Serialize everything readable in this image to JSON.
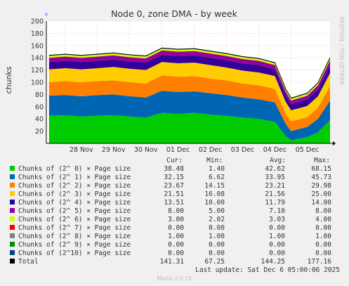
{
  "title": "Node 0, zone DMA - by week",
  "watermark": "RRDTOOL / TOBI OETIKER",
  "footer": "Munin 2.0.73",
  "last_update": "Last update: Sat Dec  6 05:00:06 2025",
  "legend_headers": [
    "Cur:",
    "Min:",
    "Avg:",
    "Max:"
  ],
  "legend_rows": [
    {
      "label": "Chunks of (2^ 0) × Page size",
      "color": "#00cc00",
      "cur": "38.48",
      "min": "1.40",
      "avg": "42.62",
      "max": "68.15"
    },
    {
      "label": "Chunks of (2^ 1) × Page size",
      "color": "#0066b3",
      "cur": "32.15",
      "min": "6.62",
      "avg": "33.95",
      "max": "45.73"
    },
    {
      "label": "Chunks of (2^ 2) × Page size",
      "color": "#ff8000",
      "cur": "23.67",
      "min": "14.15",
      "avg": "23.21",
      "max": "29.98"
    },
    {
      "label": "Chunks of (2^ 3) × Page size",
      "color": "#ffcc00",
      "cur": "21.51",
      "min": "16.08",
      "avg": "21.56",
      "max": "25.00"
    },
    {
      "label": "Chunks of (2^ 4) × Page size",
      "color": "#330099",
      "cur": "13.51",
      "min": "10.00",
      "avg": "11.79",
      "max": "14.00"
    },
    {
      "label": "Chunks of (2^ 5) × Page size",
      "color": "#990099",
      "cur": "8.00",
      "min": "5.00",
      "avg": "7.10",
      "max": "8.00"
    },
    {
      "label": "Chunks of (2^ 6) × Page size",
      "color": "#ccff00",
      "cur": "3.00",
      "min": "2.02",
      "avg": "3.03",
      "max": "4.00"
    },
    {
      "label": "Chunks of (2^ 7) × Page size",
      "color": "#ff0000",
      "cur": "0.00",
      "min": "0.00",
      "avg": "0.00",
      "max": "0.00"
    },
    {
      "label": "Chunks of (2^ 8) × Page size",
      "color": "#808080",
      "cur": "1.00",
      "min": "1.00",
      "avg": "1.00",
      "max": "1.00"
    },
    {
      "label": "Chunks of (2^ 9) × Page size",
      "color": "#008f00",
      "cur": "0.00",
      "min": "0.00",
      "avg": "0.00",
      "max": "0.00"
    },
    {
      "label": "Chunks of (2^10) × Page size",
      "color": "#00487d",
      "cur": "0.00",
      "min": "0.00",
      "avg": "0.00",
      "max": "0.00"
    },
    {
      "label": "Total",
      "color": "#000000",
      "cur": "141.31",
      "min": "67.25",
      "avg": "144.25",
      "max": "177.16"
    }
  ],
  "chart_data": {
    "type": "area",
    "title": "Node 0, zone DMA - by week",
    "ylabel": "chunks",
    "ylim": [
      0,
      200
    ],
    "yticks": [
      20,
      40,
      60,
      80,
      100,
      120,
      140,
      160,
      180,
      200
    ],
    "x_ticks": [
      "28 Nov",
      "29 Nov",
      "30 Nov",
      "01 Dec",
      "02 Dec",
      "03 Dec",
      "04 Dec",
      "05 Dec"
    ],
    "x_range": [
      "27 Nov 10:00",
      "06 Dec 05:00"
    ],
    "grid": true,
    "stacked": true,
    "x": [
      "27 Nov 12:00",
      "28 Nov 00:00",
      "28 Nov 12:00",
      "29 Nov 00:00",
      "29 Nov 12:00",
      "30 Nov 00:00",
      "30 Nov 12:00",
      "01 Dec 00:00",
      "01 Dec 12:00",
      "02 Dec 00:00",
      "02 Dec 12:00",
      "03 Dec 00:00",
      "03 Dec 12:00",
      "04 Dec 00:00",
      "04 Dec 12:00",
      "04 Dec 20:00",
      "05 Dec 00:00",
      "05 Dec 12:00",
      "05 Dec 20:00",
      "06 Dec 05:00"
    ],
    "series": [
      {
        "name": "Chunks of (2^ 0) × Page size",
        "values": [
          45,
          46,
          44,
          45,
          46,
          44,
          42,
          50,
          48,
          50,
          47,
          45,
          42,
          40,
          35,
          12,
          5,
          10,
          18,
          38
        ]
      },
      {
        "name": "Chunks of (2^ 1) × Page size",
        "values": [
          33,
          33,
          33,
          34,
          34,
          33,
          33,
          36,
          36,
          35,
          35,
          34,
          33,
          32,
          32,
          20,
          15,
          17,
          22,
          32
        ]
      },
      {
        "name": "Chunks of (2^ 2) × Page size",
        "values": [
          22,
          23,
          23,
          23,
          23,
          23,
          23,
          25,
          25,
          25,
          24,
          24,
          23,
          23,
          22,
          17,
          16,
          16,
          18,
          24
        ]
      },
      {
        "name": "Chunks of (2^ 3) × Page size",
        "values": [
          21,
          21,
          21,
          21,
          22,
          22,
          22,
          22,
          22,
          22,
          22,
          21,
          21,
          21,
          21,
          19,
          18,
          18,
          19,
          21
        ]
      },
      {
        "name": "Chunks of (2^ 4) × Page size",
        "values": [
          12,
          12,
          12,
          12,
          12,
          12,
          12,
          12,
          12,
          12,
          12,
          12,
          12,
          12,
          11,
          11,
          10,
          11,
          11,
          13
        ]
      },
      {
        "name": "Chunks of (2^ 5) × Page size",
        "values": [
          7,
          7,
          7,
          7,
          7,
          7,
          7,
          7,
          7,
          7,
          7,
          7,
          7,
          7,
          7,
          6,
          6,
          6,
          7,
          8
        ]
      },
      {
        "name": "Chunks of (2^ 6) × Page size",
        "values": [
          3,
          3,
          3,
          3,
          3,
          3,
          3,
          3,
          3,
          3,
          3,
          3,
          3,
          3,
          3,
          3,
          3,
          3,
          3,
          3
        ]
      },
      {
        "name": "Chunks of (2^ 7) × Page size",
        "values": [
          0,
          0,
          0,
          0,
          0,
          0,
          0,
          0,
          0,
          0,
          0,
          0,
          0,
          0,
          0,
          0,
          0,
          0,
          0,
          0
        ]
      },
      {
        "name": "Chunks of (2^ 8) × Page size",
        "values": [
          1,
          1,
          1,
          1,
          1,
          1,
          1,
          1,
          1,
          1,
          1,
          1,
          1,
          1,
          1,
          1,
          1,
          1,
          1,
          1
        ]
      },
      {
        "name": "Chunks of (2^ 9) × Page size",
        "values": [
          0,
          0,
          0,
          0,
          0,
          0,
          0,
          0,
          0,
          0,
          0,
          0,
          0,
          0,
          0,
          0,
          0,
          0,
          0,
          0
        ]
      },
      {
        "name": "Chunks of (2^10) × Page size",
        "values": [
          0,
          0,
          0,
          0,
          0,
          0,
          0,
          0,
          0,
          0,
          0,
          0,
          0,
          0,
          0,
          0,
          0,
          0,
          0,
          0
        ]
      }
    ]
  }
}
